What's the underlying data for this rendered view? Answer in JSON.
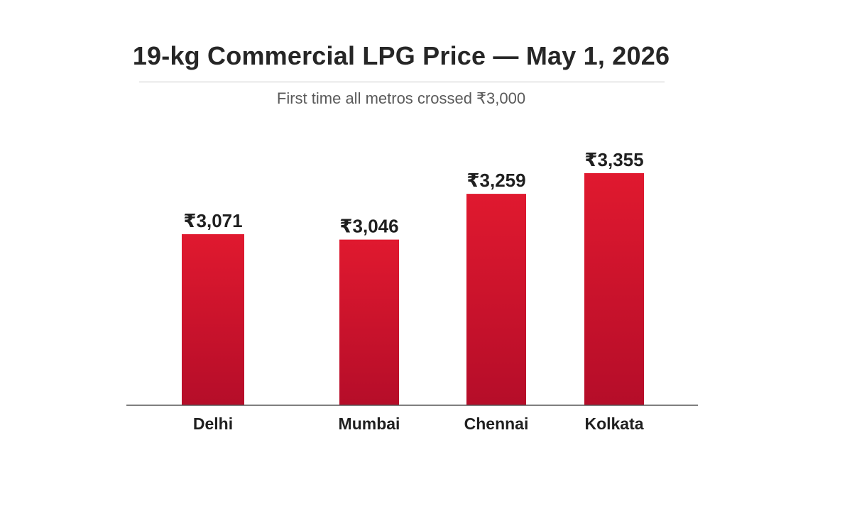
{
  "chart_data": {
    "type": "bar",
    "title": "19-kg Commercial LPG Price — May 1, 2026",
    "subtitle": "First time all metros crossed ₹3,000",
    "categories": [
      "Delhi",
      "Mumbai",
      "Chennai",
      "Kolkata"
    ],
    "values": [
      3071,
      3046,
      3259,
      3355
    ],
    "value_labels": [
      "₹3,071",
      "₹3,046",
      "₹3,259",
      "₹3,355"
    ],
    "xlabel": "",
    "ylabel": "",
    "grid": false,
    "legend": "none",
    "colors": {
      "bar_top": "#e0192f",
      "bar_bottom": "#b50d29",
      "axis": "#555555",
      "label": "#1f1f1f",
      "title": "#262626",
      "subtitle": "#5a5a5a"
    }
  }
}
